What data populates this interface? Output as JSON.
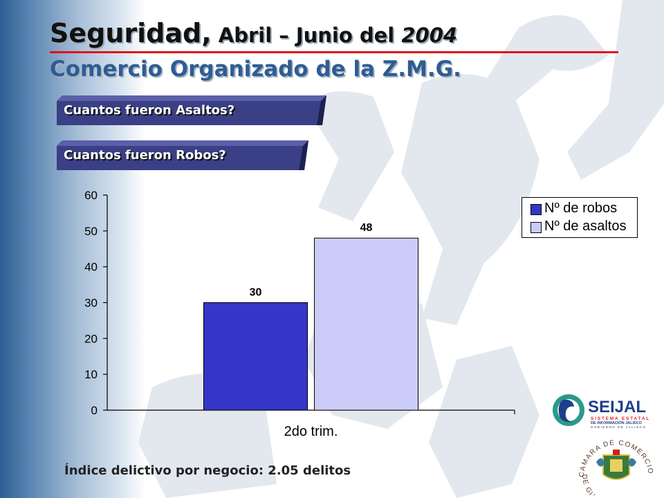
{
  "header": {
    "title_main": "Seguridad",
    "title_sep": ",",
    "title_rest": " Abril – Junio del ",
    "title_year": "2004",
    "subtitle": "Comercio Organizado de la Z.M.G."
  },
  "buttons": {
    "asaltos": "Cuantos fueron Asaltos?",
    "robos": "Cuantos fueron Robos?"
  },
  "colors": {
    "robos": "#3535c8",
    "asaltos": "#ccccf8",
    "accent_red": "#e0101a",
    "title_blue": "#2f5c93",
    "button_navy": "#3b3f86"
  },
  "chart_data": {
    "type": "bar",
    "categories": [
      "2do trim."
    ],
    "series": [
      {
        "name": "Nº de robos",
        "values": [
          30
        ]
      },
      {
        "name": "Nº de asaltos",
        "values": [
          48
        ]
      }
    ],
    "ylim": [
      0,
      60
    ],
    "yticks": [
      0,
      10,
      20,
      30,
      40,
      50,
      60
    ],
    "legend": "right",
    "grid": false
  },
  "footer": {
    "text": "Índice delictivo por negocio: 2.05 delitos"
  },
  "logos": {
    "seijal_name": "SEIJAL",
    "seijal_line1": "SISTEMA ESTATAL",
    "seijal_line2": "DE INFORMACIÓN JALISCO",
    "seijal_line3": "GOBIERNO DE JALISCO",
    "camara_top": "CAMARA DE COMERCIO",
    "camara_bottom": "DE GUADALAJARA"
  }
}
